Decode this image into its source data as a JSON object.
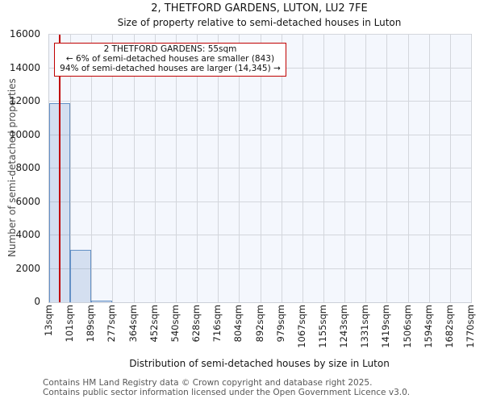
{
  "title": "2, THETFORD GARDENS, LUTON, LU2 7FE",
  "subtitle": "Size of property relative to semi-detached houses in Luton",
  "annotation": {
    "line1": "2 THETFORD GARDENS: 55sqm",
    "line2": "← 6% of semi-detached houses are smaller (843)",
    "line3": "94% of semi-detached houses are larger (14,345) →"
  },
  "axes": {
    "x_label": "Distribution of semi-detached houses by size in Luton",
    "y_label": "Number of semi-detached properties"
  },
  "footer": {
    "line1": "Contains HM Land Registry data © Crown copyright and database right 2025.",
    "line2": "Contains public sector information licensed under the Open Government Licence v3.0."
  },
  "chart_data": {
    "type": "bar",
    "subtype": "histogram",
    "title": "2, THETFORD GARDENS, LUTON, LU2 7FE",
    "xlabel": "Distribution of semi-detached houses by size in Luton",
    "ylabel": "Number of semi-detached properties",
    "bin_edges_sqm": [
      13,
      101,
      189,
      277,
      364,
      452,
      540,
      628,
      716,
      804,
      892,
      979,
      1067,
      1155,
      1243,
      1331,
      1419,
      1506,
      1594,
      1682,
      1770
    ],
    "x_tick_labels": [
      "13sqm",
      "101sqm",
      "189sqm",
      "277sqm",
      "364sqm",
      "452sqm",
      "540sqm",
      "628sqm",
      "716sqm",
      "804sqm",
      "892sqm",
      "979sqm",
      "1067sqm",
      "1155sqm",
      "1243sqm",
      "1331sqm",
      "1419sqm",
      "1506sqm",
      "1594sqm",
      "1682sqm",
      "1770sqm"
    ],
    "values": [
      11900,
      3150,
      110,
      0,
      0,
      0,
      0,
      0,
      0,
      0,
      0,
      0,
      0,
      0,
      0,
      0,
      0,
      0,
      0,
      0
    ],
    "y_ticks": [
      0,
      2000,
      4000,
      6000,
      8000,
      10000,
      12000,
      14000,
      16000
    ],
    "ylim": [
      0,
      16000
    ],
    "xlim_sqm": [
      13,
      1770
    ],
    "grid": true,
    "marker_value_sqm": 55,
    "marker_smaller_count": 843,
    "marker_larger_count": 14345,
    "colors": {
      "bar_fill": "rgba(98,140,197,0.22)",
      "bar_edge": "#6390c5",
      "marker_line": "#c00000",
      "annotation_border": "#c00000",
      "plot_background": "#f4f7fd",
      "gridline": "#d3d6dc"
    }
  }
}
